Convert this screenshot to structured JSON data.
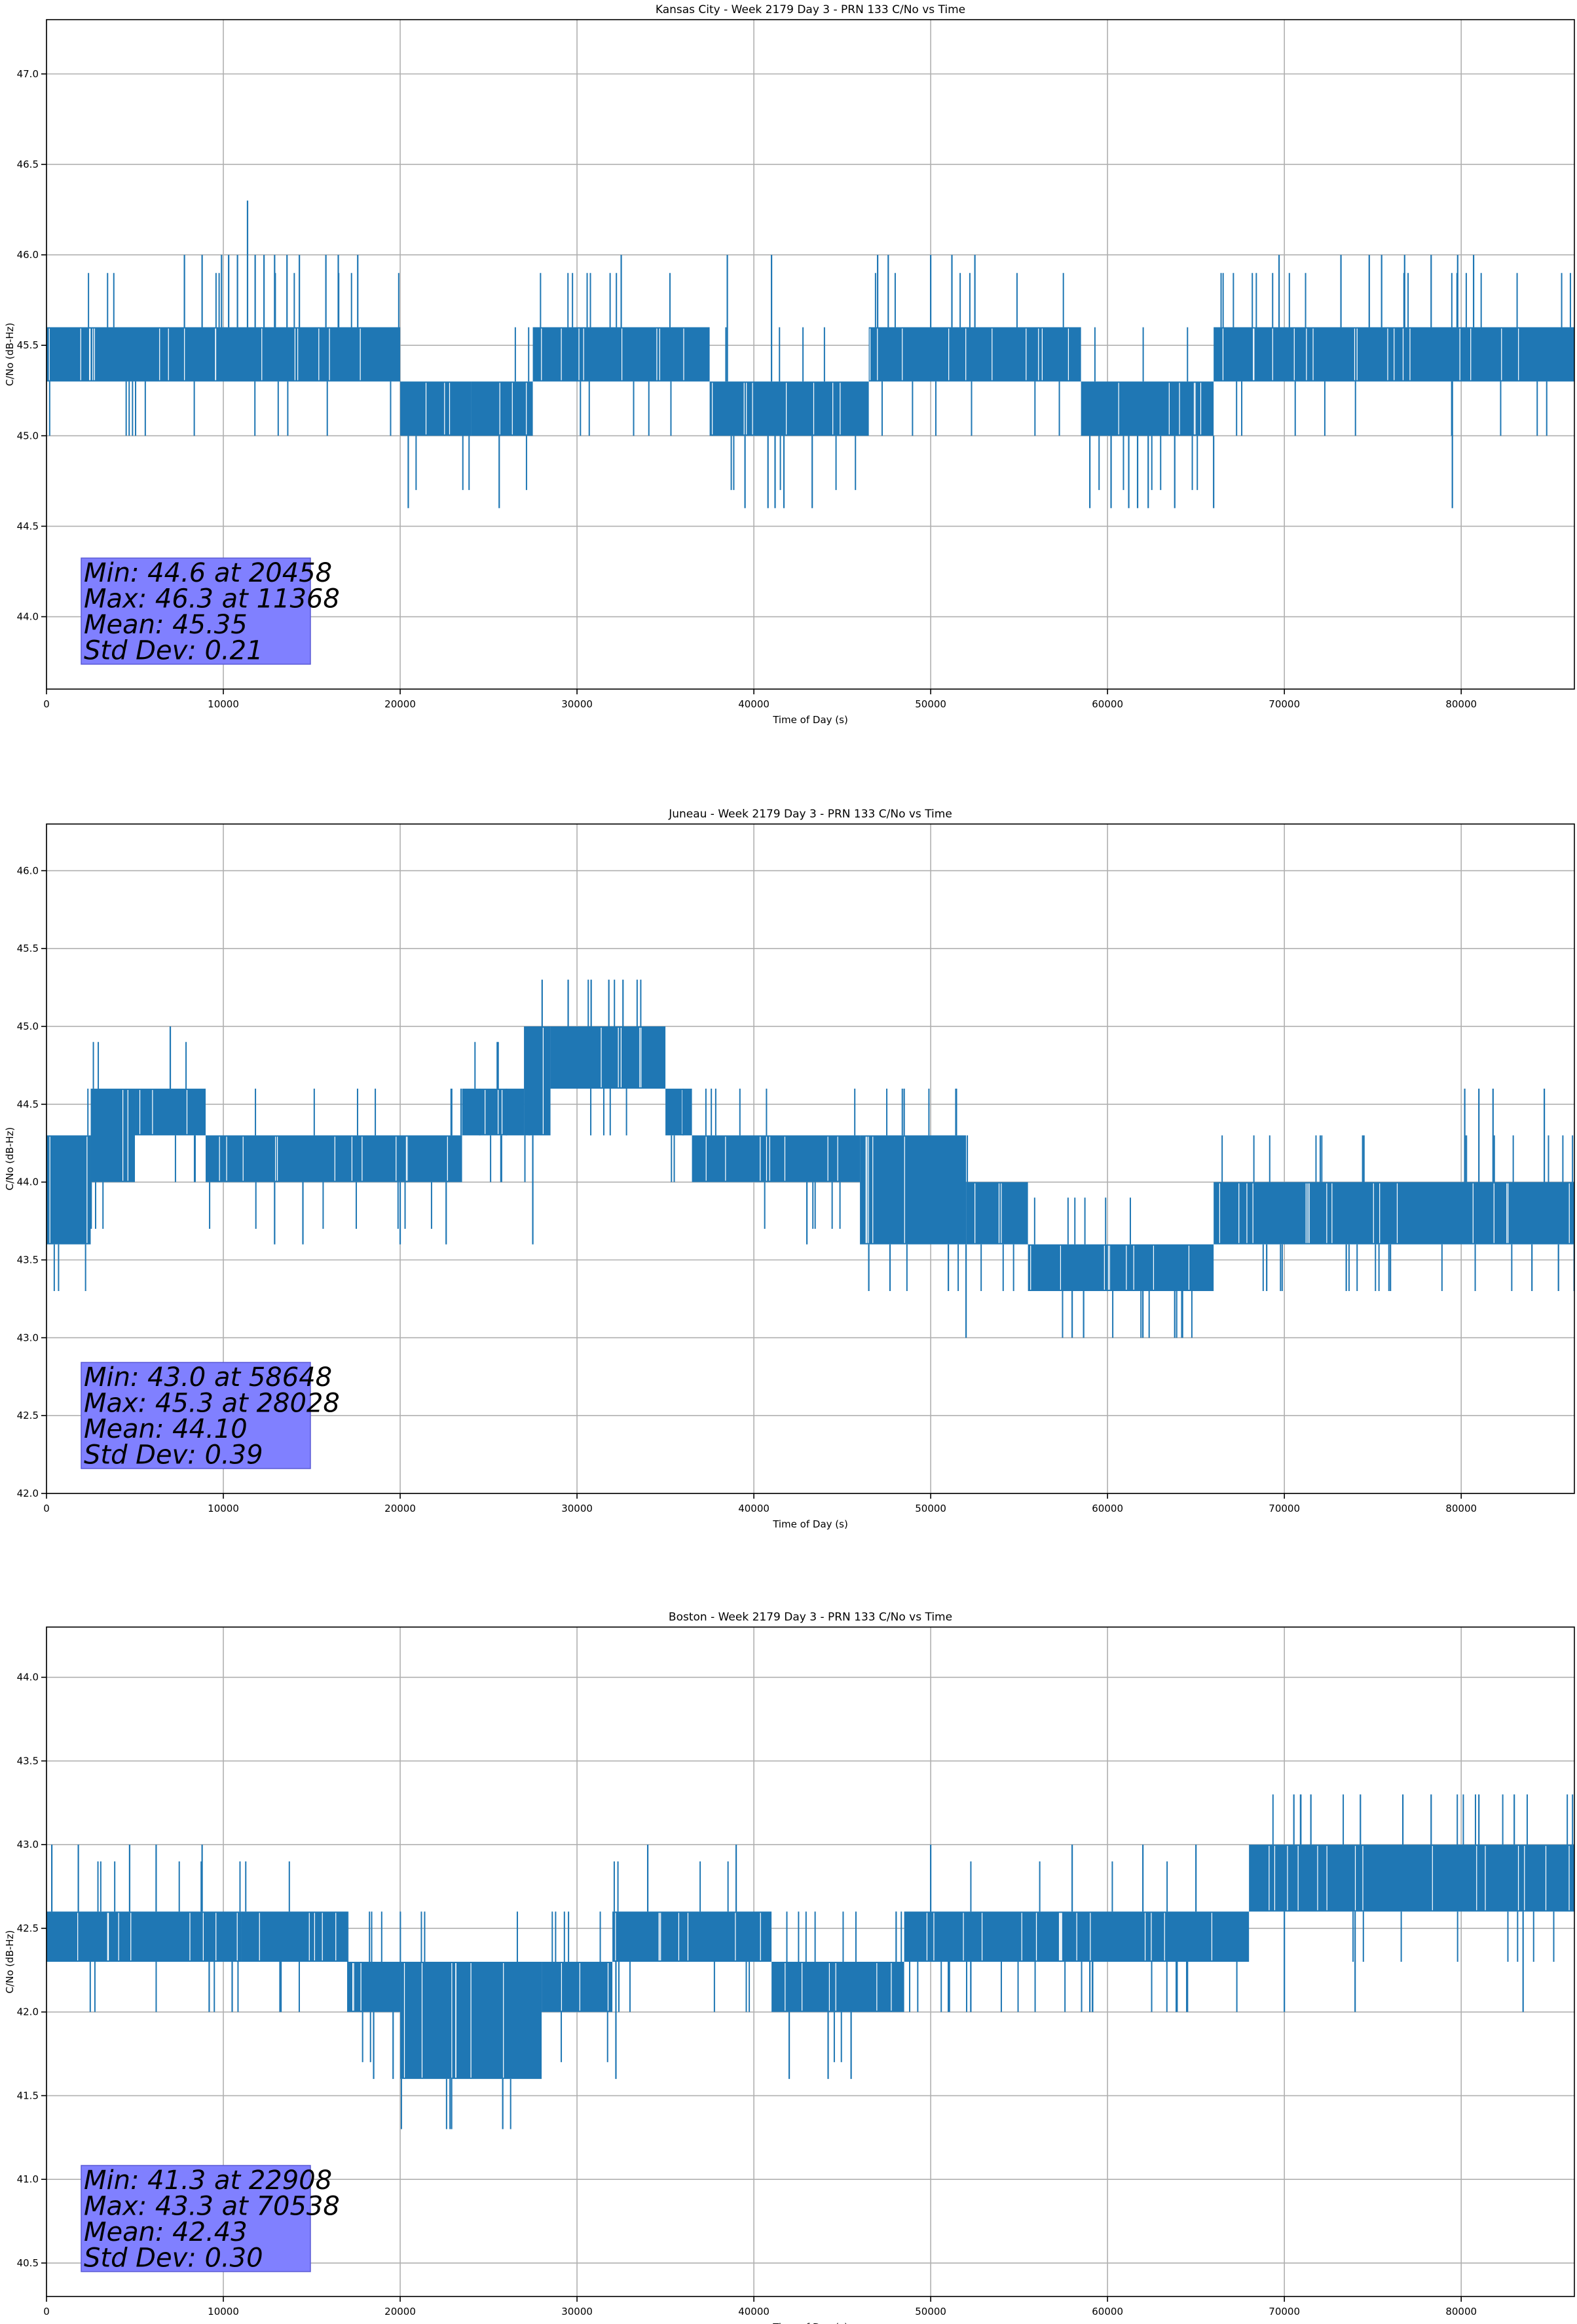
{
  "colors": {
    "series": "#1f77b4",
    "grid": "#b0b0b0",
    "stats_box": "#8080ff"
  },
  "chart_data": [
    {
      "type": "line",
      "title": "Kansas City - Week 2179 Day 3 - PRN 133 C/No vs Time",
      "xlabel": "Time of Day (s)",
      "ylabel": "C/No (dB-Hz)",
      "xlim": [
        0,
        86400
      ],
      "ylim": [
        43.6,
        47.3
      ],
      "xticks": [
        0,
        10000,
        20000,
        30000,
        40000,
        50000,
        60000,
        70000,
        80000
      ],
      "yticks": [
        44.0,
        44.5,
        45.0,
        45.5,
        46.0,
        46.5,
        47.0
      ],
      "grid": true,
      "band_segments": [
        {
          "x0": 0,
          "x1": 20000,
          "lo": 45.3,
          "hi": 45.6
        },
        {
          "x0": 20000,
          "x1": 24000,
          "lo": 45.0,
          "hi": 45.3
        },
        {
          "x0": 24000,
          "x1": 27500,
          "lo": 45.0,
          "hi": 45.3
        },
        {
          "x0": 27500,
          "x1": 37500,
          "lo": 45.3,
          "hi": 45.6
        },
        {
          "x0": 37500,
          "x1": 46500,
          "lo": 45.0,
          "hi": 45.3
        },
        {
          "x0": 46500,
          "x1": 58500,
          "lo": 45.3,
          "hi": 45.6
        },
        {
          "x0": 58500,
          "x1": 66000,
          "lo": 45.0,
          "hi": 45.3
        },
        {
          "x0": 66000,
          "x1": 86400,
          "lo": 45.3,
          "hi": 45.6
        }
      ],
      "spikes": [
        [
          7800,
          46.0
        ],
        [
          8800,
          46.0
        ],
        [
          9900,
          46.0
        ],
        [
          10300,
          46.0
        ],
        [
          10800,
          46.0
        ],
        [
          11368,
          46.3
        ],
        [
          11800,
          46.0
        ],
        [
          12300,
          46.0
        ],
        [
          12900,
          46.0
        ],
        [
          13600,
          46.0
        ],
        [
          14300,
          46.0
        ],
        [
          15800,
          46.0
        ],
        [
          16500,
          46.0
        ],
        [
          17600,
          46.0
        ],
        [
          32500,
          46.0
        ],
        [
          38500,
          46.0
        ],
        [
          41000,
          46.0
        ],
        [
          47000,
          46.0
        ],
        [
          47600,
          46.0
        ],
        [
          50000,
          46.0
        ],
        [
          51200,
          46.0
        ],
        [
          52500,
          46.0
        ],
        [
          69700,
          46.0
        ],
        [
          73200,
          46.0
        ],
        [
          74800,
          46.0
        ],
        [
          75500,
          46.0
        ],
        [
          76800,
          46.0
        ],
        [
          78300,
          46.0
        ],
        [
          79800,
          46.0
        ],
        [
          80700,
          46.0
        ],
        [
          20458,
          44.6
        ],
        [
          25600,
          44.6
        ],
        [
          39500,
          44.6
        ],
        [
          40800,
          44.6
        ],
        [
          41200,
          44.6
        ],
        [
          41700,
          44.6
        ],
        [
          43300,
          44.6
        ],
        [
          59000,
          44.6
        ],
        [
          60200,
          44.6
        ],
        [
          61200,
          44.6
        ],
        [
          61700,
          44.6
        ],
        [
          62300,
          44.6
        ],
        [
          63800,
          44.6
        ],
        [
          66000,
          44.6
        ],
        [
          79500,
          44.6
        ]
      ],
      "stats": {
        "min": "Min: 44.6 at 20458",
        "max": "Max: 46.3 at 11368",
        "mean": "Mean: 45.35",
        "std": "Std Dev: 0.21"
      }
    },
    {
      "type": "line",
      "title": "Juneau - Week 2179 Day 3 - PRN 133 C/No vs Time",
      "xlabel": "Time of Day (s)",
      "ylabel": "C/No (dB-Hz)",
      "xlim": [
        0,
        86400
      ],
      "ylim": [
        42.0,
        46.3
      ],
      "xticks": [
        0,
        10000,
        20000,
        30000,
        40000,
        50000,
        60000,
        70000,
        80000
      ],
      "yticks": [
        42.0,
        42.5,
        43.0,
        43.5,
        44.0,
        44.5,
        45.0,
        45.5,
        46.0
      ],
      "grid": true,
      "band_segments": [
        {
          "x0": 0,
          "x1": 2500,
          "lo": 43.6,
          "hi": 44.3
        },
        {
          "x0": 2500,
          "x1": 5000,
          "lo": 44.0,
          "hi": 44.6
        },
        {
          "x0": 5000,
          "x1": 9000,
          "lo": 44.3,
          "hi": 44.6
        },
        {
          "x0": 9000,
          "x1": 23500,
          "lo": 44.0,
          "hi": 44.3
        },
        {
          "x0": 23500,
          "x1": 27000,
          "lo": 44.3,
          "hi": 44.6
        },
        {
          "x0": 27000,
          "x1": 28500,
          "lo": 44.3,
          "hi": 45.0
        },
        {
          "x0": 28500,
          "x1": 35000,
          "lo": 44.6,
          "hi": 45.0
        },
        {
          "x0": 35000,
          "x1": 36500,
          "lo": 44.3,
          "hi": 44.6
        },
        {
          "x0": 36500,
          "x1": 46000,
          "lo": 44.0,
          "hi": 44.3
        },
        {
          "x0": 46000,
          "x1": 52000,
          "lo": 43.6,
          "hi": 44.3
        },
        {
          "x0": 52000,
          "x1": 55500,
          "lo": 43.6,
          "hi": 44.0
        },
        {
          "x0": 55500,
          "x1": 66000,
          "lo": 43.3,
          "hi": 43.6
        },
        {
          "x0": 66000,
          "x1": 86400,
          "lo": 43.6,
          "hi": 44.0
        }
      ],
      "spikes": [
        [
          7000,
          45.0
        ],
        [
          24500,
          44.6
        ],
        [
          26000,
          44.6
        ],
        [
          27300,
          45.0
        ],
        [
          28028,
          45.3
        ],
        [
          29500,
          45.3
        ],
        [
          30800,
          45.3
        ],
        [
          31800,
          45.3
        ],
        [
          32600,
          45.3
        ],
        [
          33800,
          45.0
        ],
        [
          36000,
          44.6
        ],
        [
          48500,
          44.6
        ],
        [
          74500,
          44.3
        ],
        [
          80200,
          44.6
        ],
        [
          81000,
          44.6
        ],
        [
          81800,
          44.6
        ],
        [
          84700,
          44.6
        ],
        [
          12900,
          43.6
        ],
        [
          14500,
          43.6
        ],
        [
          20000,
          43.6
        ],
        [
          22600,
          43.6
        ],
        [
          27500,
          43.6
        ],
        [
          43000,
          43.6
        ],
        [
          46500,
          43.3
        ],
        [
          47700,
          43.3
        ],
        [
          51000,
          43.3
        ],
        [
          52000,
          43.0
        ],
        [
          58000,
          43.0
        ],
        [
          58648,
          43.0
        ],
        [
          62000,
          43.0
        ],
        [
          63800,
          43.0
        ],
        [
          64200,
          43.0
        ],
        [
          69000,
          43.3
        ],
        [
          73500,
          43.3
        ],
        [
          76000,
          43.3
        ],
        [
          84000,
          43.3
        ],
        [
          85500,
          43.3
        ]
      ],
      "stats": {
        "min": "Min: 43.0 at 58648",
        "max": "Max: 45.3 at 28028",
        "mean": "Mean: 44.10",
        "std": "Std Dev: 0.39"
      }
    },
    {
      "type": "line",
      "title": "Boston - Week 2179 Day 3 - PRN 133 C/No vs Time",
      "xlabel": "Time of Day (s)",
      "ylabel": "C/No (dB-Hz)",
      "xlim": [
        0,
        86400
      ],
      "ylim": [
        40.3,
        44.3
      ],
      "xticks": [
        0,
        10000,
        20000,
        30000,
        40000,
        50000,
        60000,
        70000,
        80000
      ],
      "yticks": [
        40.5,
        41.0,
        41.5,
        42.0,
        42.5,
        43.0,
        43.5,
        44.0
      ],
      "grid": true,
      "band_segments": [
        {
          "x0": 0,
          "x1": 11000,
          "lo": 42.3,
          "hi": 42.6
        },
        {
          "x0": 11000,
          "x1": 17000,
          "lo": 42.3,
          "hi": 42.6
        },
        {
          "x0": 17000,
          "x1": 20000,
          "lo": 42.0,
          "hi": 42.3
        },
        {
          "x0": 20000,
          "x1": 28000,
          "lo": 41.6,
          "hi": 42.3
        },
        {
          "x0": 28000,
          "x1": 32000,
          "lo": 42.0,
          "hi": 42.3
        },
        {
          "x0": 32000,
          "x1": 41000,
          "lo": 42.3,
          "hi": 42.6
        },
        {
          "x0": 41000,
          "x1": 48500,
          "lo": 42.0,
          "hi": 42.3
        },
        {
          "x0": 48500,
          "x1": 56000,
          "lo": 42.3,
          "hi": 42.6
        },
        {
          "x0": 56000,
          "x1": 68000,
          "lo": 42.3,
          "hi": 42.6
        },
        {
          "x0": 68000,
          "x1": 86400,
          "lo": 42.6,
          "hi": 43.0
        }
      ],
      "spikes": [
        [
          300,
          43.0
        ],
        [
          1800,
          43.0
        ],
        [
          4700,
          43.0
        ],
        [
          6200,
          43.0
        ],
        [
          8800,
          43.0
        ],
        [
          34000,
          43.0
        ],
        [
          39000,
          43.0
        ],
        [
          50000,
          43.0
        ],
        [
          58000,
          43.0
        ],
        [
          62000,
          43.0
        ],
        [
          65000,
          43.0
        ],
        [
          70538,
          43.3
        ],
        [
          71500,
          43.3
        ],
        [
          74300,
          43.3
        ],
        [
          76700,
          43.3
        ],
        [
          78300,
          43.3
        ],
        [
          81000,
          43.3
        ],
        [
          83000,
          43.3
        ],
        [
          9200,
          42.0
        ],
        [
          10500,
          42.0
        ],
        [
          18500,
          41.6
        ],
        [
          19600,
          41.6
        ],
        [
          22908,
          41.3
        ],
        [
          25800,
          41.3
        ],
        [
          32200,
          41.6
        ],
        [
          42000,
          41.6
        ],
        [
          44200,
          41.6
        ],
        [
          45500,
          41.6
        ],
        [
          51000,
          42.0
        ],
        [
          59000,
          42.0
        ],
        [
          70000,
          42.0
        ],
        [
          74000,
          42.0
        ],
        [
          83500,
          42.0
        ]
      ],
      "stats": {
        "min": "Min: 41.3 at 22908",
        "max": "Max: 43.3 at 70538",
        "mean": "Mean: 42.43",
        "std": "Std Dev: 0.30"
      }
    }
  ]
}
